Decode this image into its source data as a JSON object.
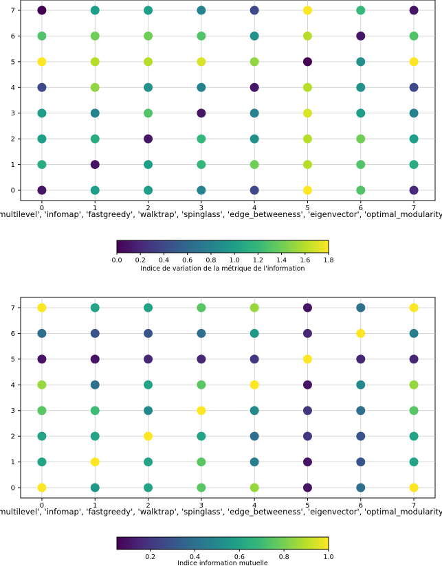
{
  "colormap": {
    "name": "viridis",
    "stops": [
      "#440154",
      "#482878",
      "#3e4989",
      "#31688e",
      "#26828e",
      "#1f9e89",
      "#35b779",
      "#6ece58",
      "#b5de2b",
      "#fde725"
    ]
  },
  "chart_data": [
    {
      "type": "scatter",
      "title": "",
      "xlabel": "['multilevel', 'infomap', 'fastgreedy', 'walktrap', 'spinglass', 'edge_betweeness', 'eigenvector', 'optimal_modularity']",
      "ylabel": "",
      "x_ticks": [
        "0",
        "1",
        "2",
        "3",
        "4",
        "5",
        "6",
        "7"
      ],
      "y_ticks": [
        "0",
        "1",
        "2",
        "3",
        "4",
        "5",
        "6",
        "7"
      ],
      "xlim": [
        -0.4,
        7.4
      ],
      "ylim": [
        -0.4,
        7.4
      ],
      "grid": true,
      "colorbar": {
        "label": "Indice de variation de la métrique de l'information",
        "range": [
          0.0,
          1.8
        ],
        "ticks": [
          "0.0",
          "0.2",
          "0.4",
          "0.6",
          "0.8",
          "1.0",
          "1.2",
          "1.4",
          "1.6",
          "1.8"
        ]
      },
      "matrix_by_y_top_to_bottom": [
        [
          0.0,
          1.0,
          1.0,
          0.8,
          0.4,
          1.8,
          1.2,
          0.1
        ],
        [
          1.3,
          1.4,
          1.4,
          1.3,
          0.9,
          1.6,
          0.1,
          1.3
        ],
        [
          1.8,
          1.6,
          1.6,
          1.7,
          1.5,
          0.0,
          0.9,
          1.8
        ],
        [
          0.4,
          1.5,
          0.9,
          0.8,
          0.1,
          1.6,
          0.9,
          0.4
        ],
        [
          1.0,
          0.8,
          1.3,
          0.1,
          0.8,
          1.7,
          1.0,
          0.8
        ],
        [
          1.0,
          1.1,
          0.1,
          1.2,
          0.9,
          1.6,
          1.4,
          1.0
        ],
        [
          1.1,
          0.1,
          1.0,
          1.2,
          1.4,
          1.6,
          1.3,
          1.1
        ],
        [
          0.1,
          1.0,
          1.0,
          0.8,
          0.4,
          1.8,
          1.3,
          0.2
        ]
      ]
    },
    {
      "type": "scatter",
      "title": "",
      "xlabel": "['multilevel', 'infomap', 'fastgreedy', 'walktrap', 'spinglass', 'edge_betweeness', 'eigenvector', 'optimal_modularity']",
      "ylabel": "",
      "x_ticks": [
        "0",
        "1",
        "2",
        "3",
        "4",
        "5",
        "6",
        "7"
      ],
      "y_ticks": [
        "0",
        "1",
        "2",
        "3",
        "4",
        "5",
        "6",
        "7"
      ],
      "xlim": [
        -0.4,
        7.4
      ],
      "ylim": [
        -0.4,
        7.4
      ],
      "grid": true,
      "colorbar": {
        "label": "Indice information mutuelle",
        "range": [
          0.05,
          1.0
        ],
        "ticks": [
          "0.2",
          "0.4",
          "0.6",
          "0.8",
          "1.0"
        ]
      },
      "matrix_by_y_top_to_bottom": [
        [
          1.0,
          0.6,
          0.6,
          0.75,
          0.85,
          0.1,
          0.4,
          1.0
        ],
        [
          0.4,
          0.3,
          0.3,
          0.4,
          0.55,
          0.15,
          1.0,
          0.45
        ],
        [
          0.1,
          0.1,
          0.15,
          0.15,
          0.2,
          1.0,
          0.15,
          0.15
        ],
        [
          0.85,
          0.4,
          0.6,
          0.75,
          1.0,
          0.1,
          0.5,
          0.85
        ],
        [
          0.75,
          0.7,
          0.5,
          1.0,
          0.5,
          0.2,
          0.4,
          0.75
        ],
        [
          0.6,
          0.6,
          1.0,
          0.6,
          0.4,
          0.2,
          0.3,
          0.6
        ],
        [
          0.6,
          1.0,
          0.6,
          0.75,
          0.45,
          0.1,
          0.3,
          0.6
        ],
        [
          1.0,
          0.55,
          0.6,
          0.75,
          0.85,
          0.1,
          0.4,
          1.0
        ]
      ]
    }
  ]
}
